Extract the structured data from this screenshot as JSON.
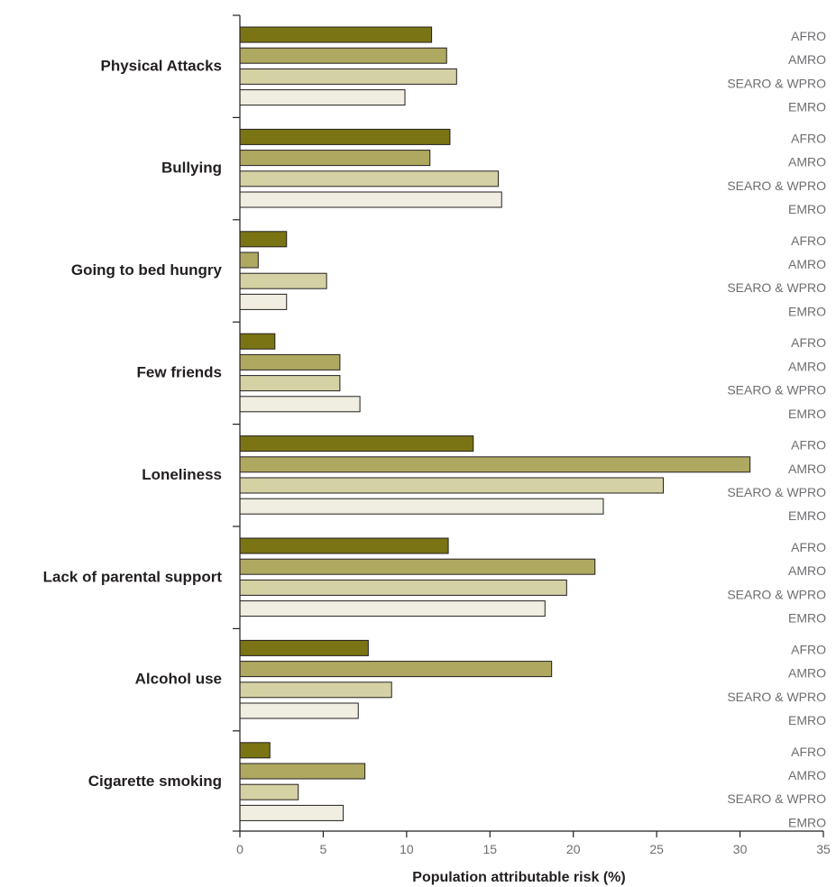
{
  "chart_data": {
    "type": "bar",
    "orientation": "horizontal",
    "title": "",
    "xlabel": "Population attributable risk (%)",
    "ylabel": "",
    "xlim": [
      0,
      35
    ],
    "xticks": [
      0,
      5,
      10,
      15,
      20,
      25,
      30,
      35
    ],
    "tick_labels": [
      "0",
      "5",
      "10",
      "15",
      "20",
      "25",
      "30",
      "35"
    ],
    "grid": false,
    "categories": [
      "Physical Attacks",
      "Bullying",
      "Going to bed hungry",
      "Few friends",
      "Loneliness",
      "Lack of parental support",
      "Alcohol use",
      "Cigarette smoking"
    ],
    "series": [
      {
        "name": "AFRO",
        "color": "#7a7414",
        "values": [
          11.5,
          12.6,
          2.8,
          2.1,
          14.0,
          12.5,
          7.7,
          1.8
        ]
      },
      {
        "name": "AMRO",
        "color": "#afa860",
        "values": [
          12.4,
          11.4,
          1.1,
          6.0,
          30.6,
          21.3,
          18.7,
          7.5
        ]
      },
      {
        "name": "SEARO & WPRO",
        "color": "#d4d1a4",
        "values": [
          13.0,
          15.5,
          5.2,
          6.0,
          25.4,
          19.6,
          9.1,
          3.5
        ]
      },
      {
        "name": "EMRO",
        "color": "#efeee0",
        "values": [
          9.9,
          15.7,
          2.8,
          7.2,
          21.8,
          18.3,
          7.1,
          6.2
        ]
      }
    ]
  }
}
